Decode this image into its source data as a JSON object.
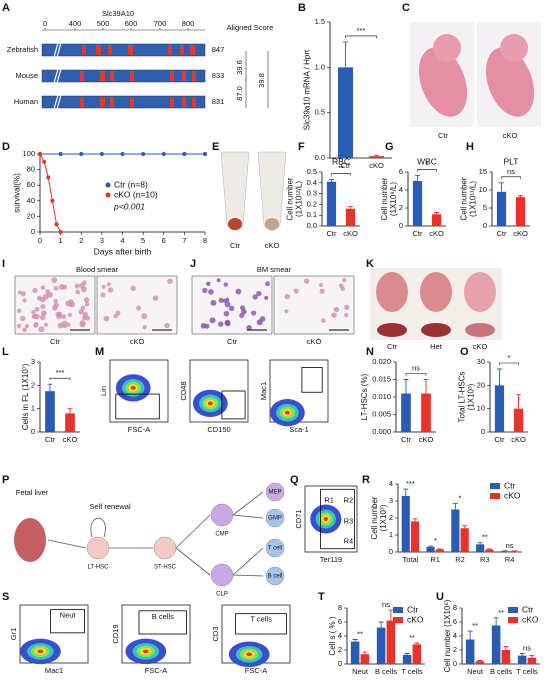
{
  "panel_letters": [
    "A",
    "B",
    "C",
    "D",
    "E",
    "F",
    "G",
    "H",
    "I",
    "J",
    "K",
    "L",
    "M",
    "N",
    "O",
    "P",
    "Q",
    "R",
    "S",
    "T",
    "U"
  ],
  "seq_alignment": {
    "title": "Slc39A10",
    "ticks": [
      0,
      400,
      500,
      600,
      700,
      800
    ],
    "score_header": "Aligned Score",
    "species": [
      {
        "name": "Zebrafish",
        "score": 847
      },
      {
        "name": "Mouse",
        "score": 833
      },
      {
        "name": "Human",
        "score": 831
      }
    ],
    "identity": [
      "39.6",
      "87.0",
      "39.8"
    ]
  },
  "photos": {
    "C": [
      "Ctr",
      "cKO"
    ],
    "E": [
      "Ctr",
      "cKO"
    ],
    "I": {
      "title": "Blood smear",
      "labels": [
        "Ctr",
        "cKO"
      ]
    },
    "J": {
      "title": "BM smear",
      "labels": [
        "Ctr",
        "cKO"
      ]
    },
    "K": [
      "Ctr",
      "Het",
      "cKO"
    ]
  },
  "flow": {
    "M": [
      {
        "y": "Lin",
        "x": "FSC-A"
      },
      {
        "y": "CD48",
        "x": "CD150"
      },
      {
        "y": "Mac1",
        "x": "Sca-1"
      }
    ],
    "Q": {
      "y": "CD71",
      "x": "Ter119",
      "gates": [
        "R1",
        "R2",
        "R3",
        "R4"
      ]
    },
    "S": [
      {
        "y": "Gr1",
        "x": "Mac1",
        "gate": "Neut"
      },
      {
        "y": "CD19",
        "x": "FSC-A",
        "gate": "B cells"
      },
      {
        "y": "CD3",
        "x": "FSC-A",
        "gate": "T cells"
      }
    ]
  },
  "lineage": {
    "source": "Fetal liver",
    "self_renewal": "Self renewal",
    "nodes": [
      "LT-HSC",
      "ST-HSC",
      "CMP",
      "CLP",
      "MEP",
      "GMP",
      "T cell",
      "B cell"
    ]
  },
  "chart_data": [
    {
      "type": "bar",
      "ylabel": [
        "Slc39a10 mRNA / Hprt"
      ],
      "categories": [
        "Ctr",
        "cKO"
      ],
      "values": [
        1.0,
        0.02
      ],
      "errors": [
        0.28,
        0.01
      ],
      "colors": [
        "#2a5cb4",
        "#e8322a"
      ],
      "ylim": [
        0,
        1.5
      ],
      "yticks": [
        {
          "value": 0,
          "label": "0.0"
        },
        0.5,
        {
          "value": 1,
          "label": "1.0"
        },
        1.5
      ],
      "annotations": [
        "***"
      ]
    },
    {
      "type": "line",
      "ylabel": [
        "survival(%)"
      ],
      "xlabel": "Days after birth",
      "xlim": [
        0,
        8
      ],
      "xticks": [
        0,
        1,
        2,
        3,
        4,
        5,
        6,
        7,
        8
      ],
      "ylim": [
        0,
        100
      ],
      "yticks": [
        0,
        20,
        40,
        60,
        80,
        100
      ],
      "legend": "center",
      "series": [
        {
          "name": "Ctr (n=8)",
          "color": "#2a5cb4",
          "x": [
            0,
            1,
            2,
            3,
            4,
            5,
            6,
            7,
            8
          ],
          "values": [
            100,
            100,
            100,
            100,
            100,
            100,
            100,
            100,
            100
          ]
        },
        {
          "name": "cKO (n=10)",
          "color": "#e8322a",
          "x": [
            0,
            0.2,
            0.4,
            0.6,
            0.8,
            1
          ],
          "values": [
            100,
            90,
            70,
            40,
            10,
            0
          ]
        }
      ],
      "annotations": [
        "p<0.001"
      ]
    },
    {
      "type": "bar",
      "title": "RBC",
      "ylabel": [
        "Cell number",
        "(1X10¹²/L)"
      ],
      "categories": [
        "Ctr",
        "cKO"
      ],
      "values": [
        0.41,
        0.16
      ],
      "errors": [
        0.02,
        0.02
      ],
      "colors": [
        "#2a5cb4",
        "#e8322a"
      ],
      "ylim": [
        0,
        0.5
      ],
      "yticks": [
        {
          "value": 0,
          "label": "0.0"
        },
        0.1,
        0.2,
        0.3,
        0.4,
        0.5
      ],
      "annotations": [
        "**"
      ]
    },
    {
      "type": "bar",
      "title": "WBC",
      "ylabel": [
        "Cell number",
        "(1X10⁹/L)"
      ],
      "categories": [
        "Ctr",
        "cKO"
      ],
      "values": [
        5.0,
        1.3
      ],
      "errors": [
        0.6,
        0.2
      ],
      "colors": [
        "#2a5cb4",
        "#e8322a"
      ],
      "ylim": [
        0,
        6
      ],
      "yticks": [
        0,
        2,
        4,
        6
      ],
      "annotations": [
        "*"
      ]
    },
    {
      "type": "bar",
      "title": "PLT",
      "ylabel": [
        "Cell number",
        "(1X10¹¹/L)"
      ],
      "categories": [
        "Ctr",
        "cKO"
      ],
      "values": [
        9.5,
        8.0
      ],
      "errors": [
        2.5,
        0.4
      ],
      "colors": [
        "#2a5cb4",
        "#e8322a"
      ],
      "ylim": [
        0,
        15
      ],
      "yticks": [
        0,
        5,
        10,
        15
      ],
      "annotations": [
        "ns"
      ]
    },
    {
      "type": "bar",
      "ylabel": [
        "Cells in FL (1X10⁷)"
      ],
      "categories": [
        "Ctr",
        "cKO"
      ],
      "values": [
        1.75,
        0.8
      ],
      "errors": [
        0.3,
        0.2
      ],
      "colors": [
        "#2a5cb4",
        "#e8322a"
      ],
      "ylim": [
        0,
        3
      ],
      "yticks": [
        0,
        1,
        2,
        3
      ],
      "annotations": [
        "***"
      ]
    },
    {
      "type": "bar",
      "ylabel": [
        "LT-HSCs (%)"
      ],
      "categories": [
        "Ctr",
        "cKO"
      ],
      "values": [
        0.011,
        0.011
      ],
      "errors": [
        0.004,
        0.004
      ],
      "colors": [
        "#2a5cb4",
        "#e8322a"
      ],
      "ylim": [
        0,
        0.02
      ],
      "yticks": [
        {
          "value": 0,
          "label": "0.000"
        },
        0.005,
        {
          "value": 0.01,
          "label": "0.010"
        },
        0.015,
        {
          "value": 0.02,
          "label": "0.020"
        }
      ],
      "annotations": [
        "ns"
      ]
    },
    {
      "type": "bar",
      "ylabel": [
        "Total LT-HSCs",
        "(1X10³)"
      ],
      "categories": [
        "Ctr",
        "cKO"
      ],
      "values": [
        20,
        10
      ],
      "errors": [
        7,
        6
      ],
      "colors": [
        "#2a5cb4",
        "#e8322a"
      ],
      "ylim": [
        0,
        30
      ],
      "yticks": [
        0,
        10,
        20,
        30
      ],
      "annotations": [
        "*"
      ]
    },
    {
      "type": "bar",
      "ylabel": [
        "Cell number",
        "(1X10⁷)"
      ],
      "categories": [
        "Total",
        "R1",
        "R2",
        "R3",
        "R4"
      ],
      "legend": "upper right",
      "series": [
        {
          "name": "Ctr",
          "color": "#2a5cb4",
          "values": [
            3.3,
            0.3,
            2.5,
            0.45,
            0.05
          ],
          "errors": [
            0.4,
            0.05,
            0.35,
            0.1,
            0.02
          ]
        },
        {
          "name": "cKO",
          "color": "#e8322a",
          "values": [
            1.8,
            0.15,
            1.4,
            0.15,
            0.05
          ],
          "errors": [
            0.15,
            0.03,
            0.15,
            0.04,
            0.02
          ]
        }
      ],
      "ylim": [
        0,
        4
      ],
      "yticks": [
        0,
        1,
        2,
        3,
        4
      ],
      "annotations": [
        "***",
        "*",
        "*",
        "**",
        "ns"
      ]
    },
    {
      "type": "bar",
      "ylabel": [
        "Cell s ( % )"
      ],
      "categories": [
        "Neut",
        "B cells",
        "T cells"
      ],
      "legend": "upper right",
      "series": [
        {
          "name": "Ctr",
          "color": "#2a5cb4",
          "values": [
            3.2,
            5.2,
            1.3
          ],
          "errors": [
            0.3,
            0.8,
            0.2
          ]
        },
        {
          "name": "cKO",
          "color": "#e8322a",
          "values": [
            1.4,
            6.2,
            2.8
          ],
          "errors": [
            0.3,
            1.5,
            0.2
          ]
        }
      ],
      "ylim": [
        0,
        8
      ],
      "yticks": [
        0,
        2,
        4,
        6,
        8
      ],
      "annotations": [
        "**",
        "ns",
        "**"
      ]
    },
    {
      "type": "bar",
      "ylabel": [
        "Cell number (1X10⁶)"
      ],
      "categories": [
        "Neut",
        "B cells",
        "T cells"
      ],
      "legend": "upper right",
      "series": [
        {
          "name": "Ctr",
          "color": "#2a5cb4",
          "values": [
            3.5,
            5.5,
            1.2
          ],
          "errors": [
            1.2,
            1.1,
            0.3
          ]
        },
        {
          "name": "cKO",
          "color": "#e8322a",
          "values": [
            0.4,
            2.0,
            0.9
          ],
          "errors": [
            0.1,
            0.5,
            0.3
          ]
        }
      ],
      "ylim": [
        0,
        8
      ],
      "yticks": [
        0,
        2,
        4,
        6,
        8
      ],
      "annotations": [
        "**",
        "**",
        "ns"
      ]
    }
  ]
}
